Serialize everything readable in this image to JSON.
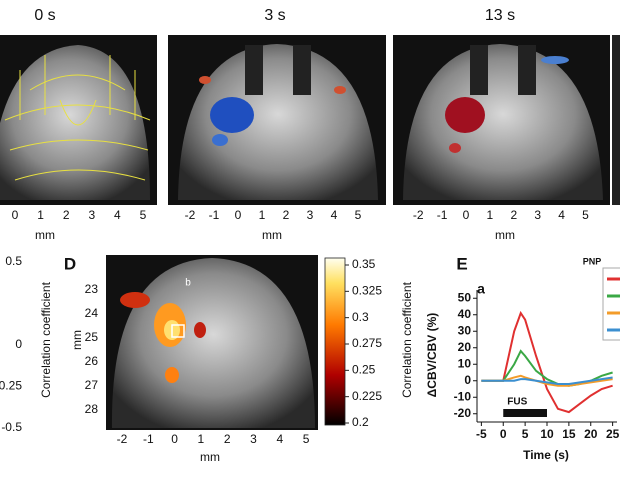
{
  "figure": {
    "top_panels": [
      {
        "title": "0 s",
        "xticks": [
          0,
          1,
          2,
          3,
          4,
          5
        ],
        "xlabel": "mm"
      },
      {
        "title": "3 s",
        "xticks": [
          -2,
          -1,
          0,
          1,
          2,
          3,
          4,
          5
        ],
        "xlabel": "mm"
      },
      {
        "title": "13 s",
        "xticks": [
          -2,
          -1,
          0,
          1,
          2,
          3,
          4,
          5
        ],
        "xlabel": "mm"
      }
    ],
    "left_panel": {
      "yticks": [
        0.5,
        0,
        -0.25,
        -0.5
      ]
    },
    "panel_d": {
      "label": "D",
      "annotation": "b",
      "ylabel_outer": "Correlation coefficient",
      "ylabel": "mm",
      "yticks": [
        23,
        24,
        25,
        26,
        27,
        28
      ],
      "xticks": [
        -2,
        -1,
        0,
        1,
        2,
        3,
        4,
        5
      ],
      "xlabel": "mm",
      "colorbar_ticks": [
        0.35,
        0.325,
        0.3,
        0.275,
        0.25,
        0.225,
        0.2
      ],
      "colorbar_label": "Correlation coefficient"
    }
  },
  "chart_data": {
    "type": "line",
    "panel_label": "E",
    "subtitle": "a",
    "ylabel": "ΔCBV/CBV (%)",
    "xlabel": "Time (s)",
    "legend_title": "PNP",
    "x": [
      -5,
      -2.5,
      0,
      2.5,
      4,
      5,
      7.5,
      10,
      12.5,
      15,
      17.5,
      20,
      22.5,
      25
    ],
    "series": [
      {
        "color": "#e03030",
        "values": [
          0,
          0,
          0,
          30,
          41,
          37,
          15,
          -5,
          -17,
          -19,
          -14,
          -9,
          -5,
          -3
        ]
      },
      {
        "color": "#3aa845",
        "values": [
          0,
          0,
          0,
          10,
          18,
          15,
          6,
          1,
          -2,
          -3,
          -2,
          0,
          3,
          5
        ]
      },
      {
        "color": "#f39c2a",
        "values": [
          0,
          0,
          0,
          2,
          3,
          2,
          0,
          -2,
          -3,
          -3,
          -2,
          -1,
          0,
          1
        ]
      },
      {
        "color": "#3b8fd0",
        "values": [
          0,
          0,
          0,
          0,
          1,
          1,
          0,
          -1,
          -2,
          -2,
          -1,
          0,
          1,
          2
        ]
      }
    ],
    "stimulus": {
      "label": "FUS",
      "start": 0,
      "end": 10
    },
    "xlim": [
      -6,
      26
    ],
    "ylim": [
      -25,
      55
    ],
    "xticks": [
      -5,
      0,
      5,
      10,
      15,
      20,
      25
    ],
    "yticks": [
      50,
      40,
      30,
      20,
      10,
      0,
      -10,
      -20
    ]
  }
}
